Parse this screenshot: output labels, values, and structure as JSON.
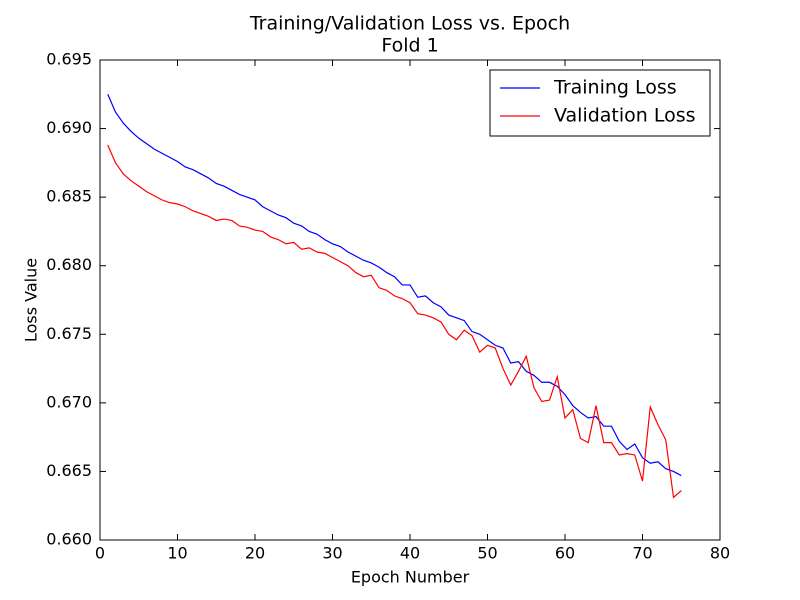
{
  "chart_data": {
    "type": "line",
    "title": "Training/Validation Loss vs. Epoch",
    "subtitle": "Fold 1",
    "x_label": "Epoch Number",
    "y_label": "Loss Value",
    "x": [
      1,
      2,
      3,
      4,
      5,
      6,
      7,
      8,
      9,
      10,
      11,
      12,
      13,
      14,
      15,
      16,
      17,
      18,
      19,
      20,
      21,
      22,
      23,
      24,
      25,
      26,
      27,
      28,
      29,
      30,
      31,
      32,
      33,
      34,
      35,
      36,
      37,
      38,
      39,
      40,
      41,
      42,
      43,
      44,
      45,
      46,
      47,
      48,
      49,
      50,
      51,
      52,
      53,
      54,
      55,
      56,
      57,
      58,
      59,
      60,
      61,
      62,
      63,
      64,
      65,
      66,
      67,
      68,
      69,
      70,
      71,
      72,
      73,
      74,
      75
    ],
    "series": [
      {
        "name": "Training Loss",
        "color": "#0000ff",
        "values": [
          0.6925,
          0.6912,
          0.6904,
          0.6898,
          0.6893,
          0.6889,
          0.6885,
          0.6882,
          0.6879,
          0.6876,
          0.6872,
          0.687,
          0.6867,
          0.6864,
          0.686,
          0.6858,
          0.6855,
          0.6852,
          0.685,
          0.6848,
          0.6843,
          0.684,
          0.6837,
          0.6835,
          0.6831,
          0.6829,
          0.6825,
          0.6823,
          0.6819,
          0.6816,
          0.6814,
          0.681,
          0.6807,
          0.6804,
          0.6802,
          0.6799,
          0.6795,
          0.6792,
          0.6786,
          0.6786,
          0.6777,
          0.6778,
          0.6773,
          0.677,
          0.6764,
          0.6762,
          0.676,
          0.6752,
          0.675,
          0.6746,
          0.6742,
          0.674,
          0.6729,
          0.673,
          0.6723,
          0.672,
          0.6715,
          0.6715,
          0.6712,
          0.6706,
          0.6698,
          0.6693,
          0.6689,
          0.669,
          0.6683,
          0.6683,
          0.6672,
          0.6666,
          0.667,
          0.666,
          0.6656,
          0.6657,
          0.6652,
          0.665,
          0.6647
        ]
      },
      {
        "name": "Validation Loss",
        "color": "#ff0000",
        "values": [
          0.6888,
          0.6875,
          0.6867,
          0.6862,
          0.6858,
          0.6854,
          0.6851,
          0.6848,
          0.6846,
          0.6845,
          0.6843,
          0.684,
          0.6838,
          0.6836,
          0.6833,
          0.6834,
          0.6833,
          0.6829,
          0.6828,
          0.6826,
          0.6825,
          0.6821,
          0.6819,
          0.6816,
          0.6817,
          0.6812,
          0.6813,
          0.681,
          0.6809,
          0.6806,
          0.6803,
          0.68,
          0.6795,
          0.6792,
          0.6793,
          0.6784,
          0.6782,
          0.6778,
          0.6776,
          0.6773,
          0.6765,
          0.6764,
          0.6762,
          0.6759,
          0.675,
          0.6746,
          0.6753,
          0.6749,
          0.6737,
          0.6742,
          0.674,
          0.6725,
          0.6713,
          0.6723,
          0.6734,
          0.6711,
          0.6701,
          0.6702,
          0.6719,
          0.6689,
          0.6695,
          0.6674,
          0.6671,
          0.6698,
          0.6671,
          0.6671,
          0.6662,
          0.6663,
          0.6662,
          0.6643,
          0.6697,
          0.6684,
          0.6673,
          0.6631,
          0.6636
        ]
      }
    ],
    "xlim": [
      0,
      80
    ],
    "xticks": [
      0,
      10,
      20,
      30,
      40,
      50,
      60,
      70,
      80
    ],
    "ylim": [
      0.66,
      0.695
    ],
    "yticks": [
      {
        "value": 0.66,
        "label": "0.660"
      },
      0.665,
      {
        "value": 0.67,
        "label": "0.670"
      },
      0.675,
      {
        "value": 0.68,
        "label": "0.680"
      },
      0.685,
      {
        "value": 0.69,
        "label": "0.690"
      },
      0.695
    ],
    "legend": "upper right",
    "grid": false
  }
}
